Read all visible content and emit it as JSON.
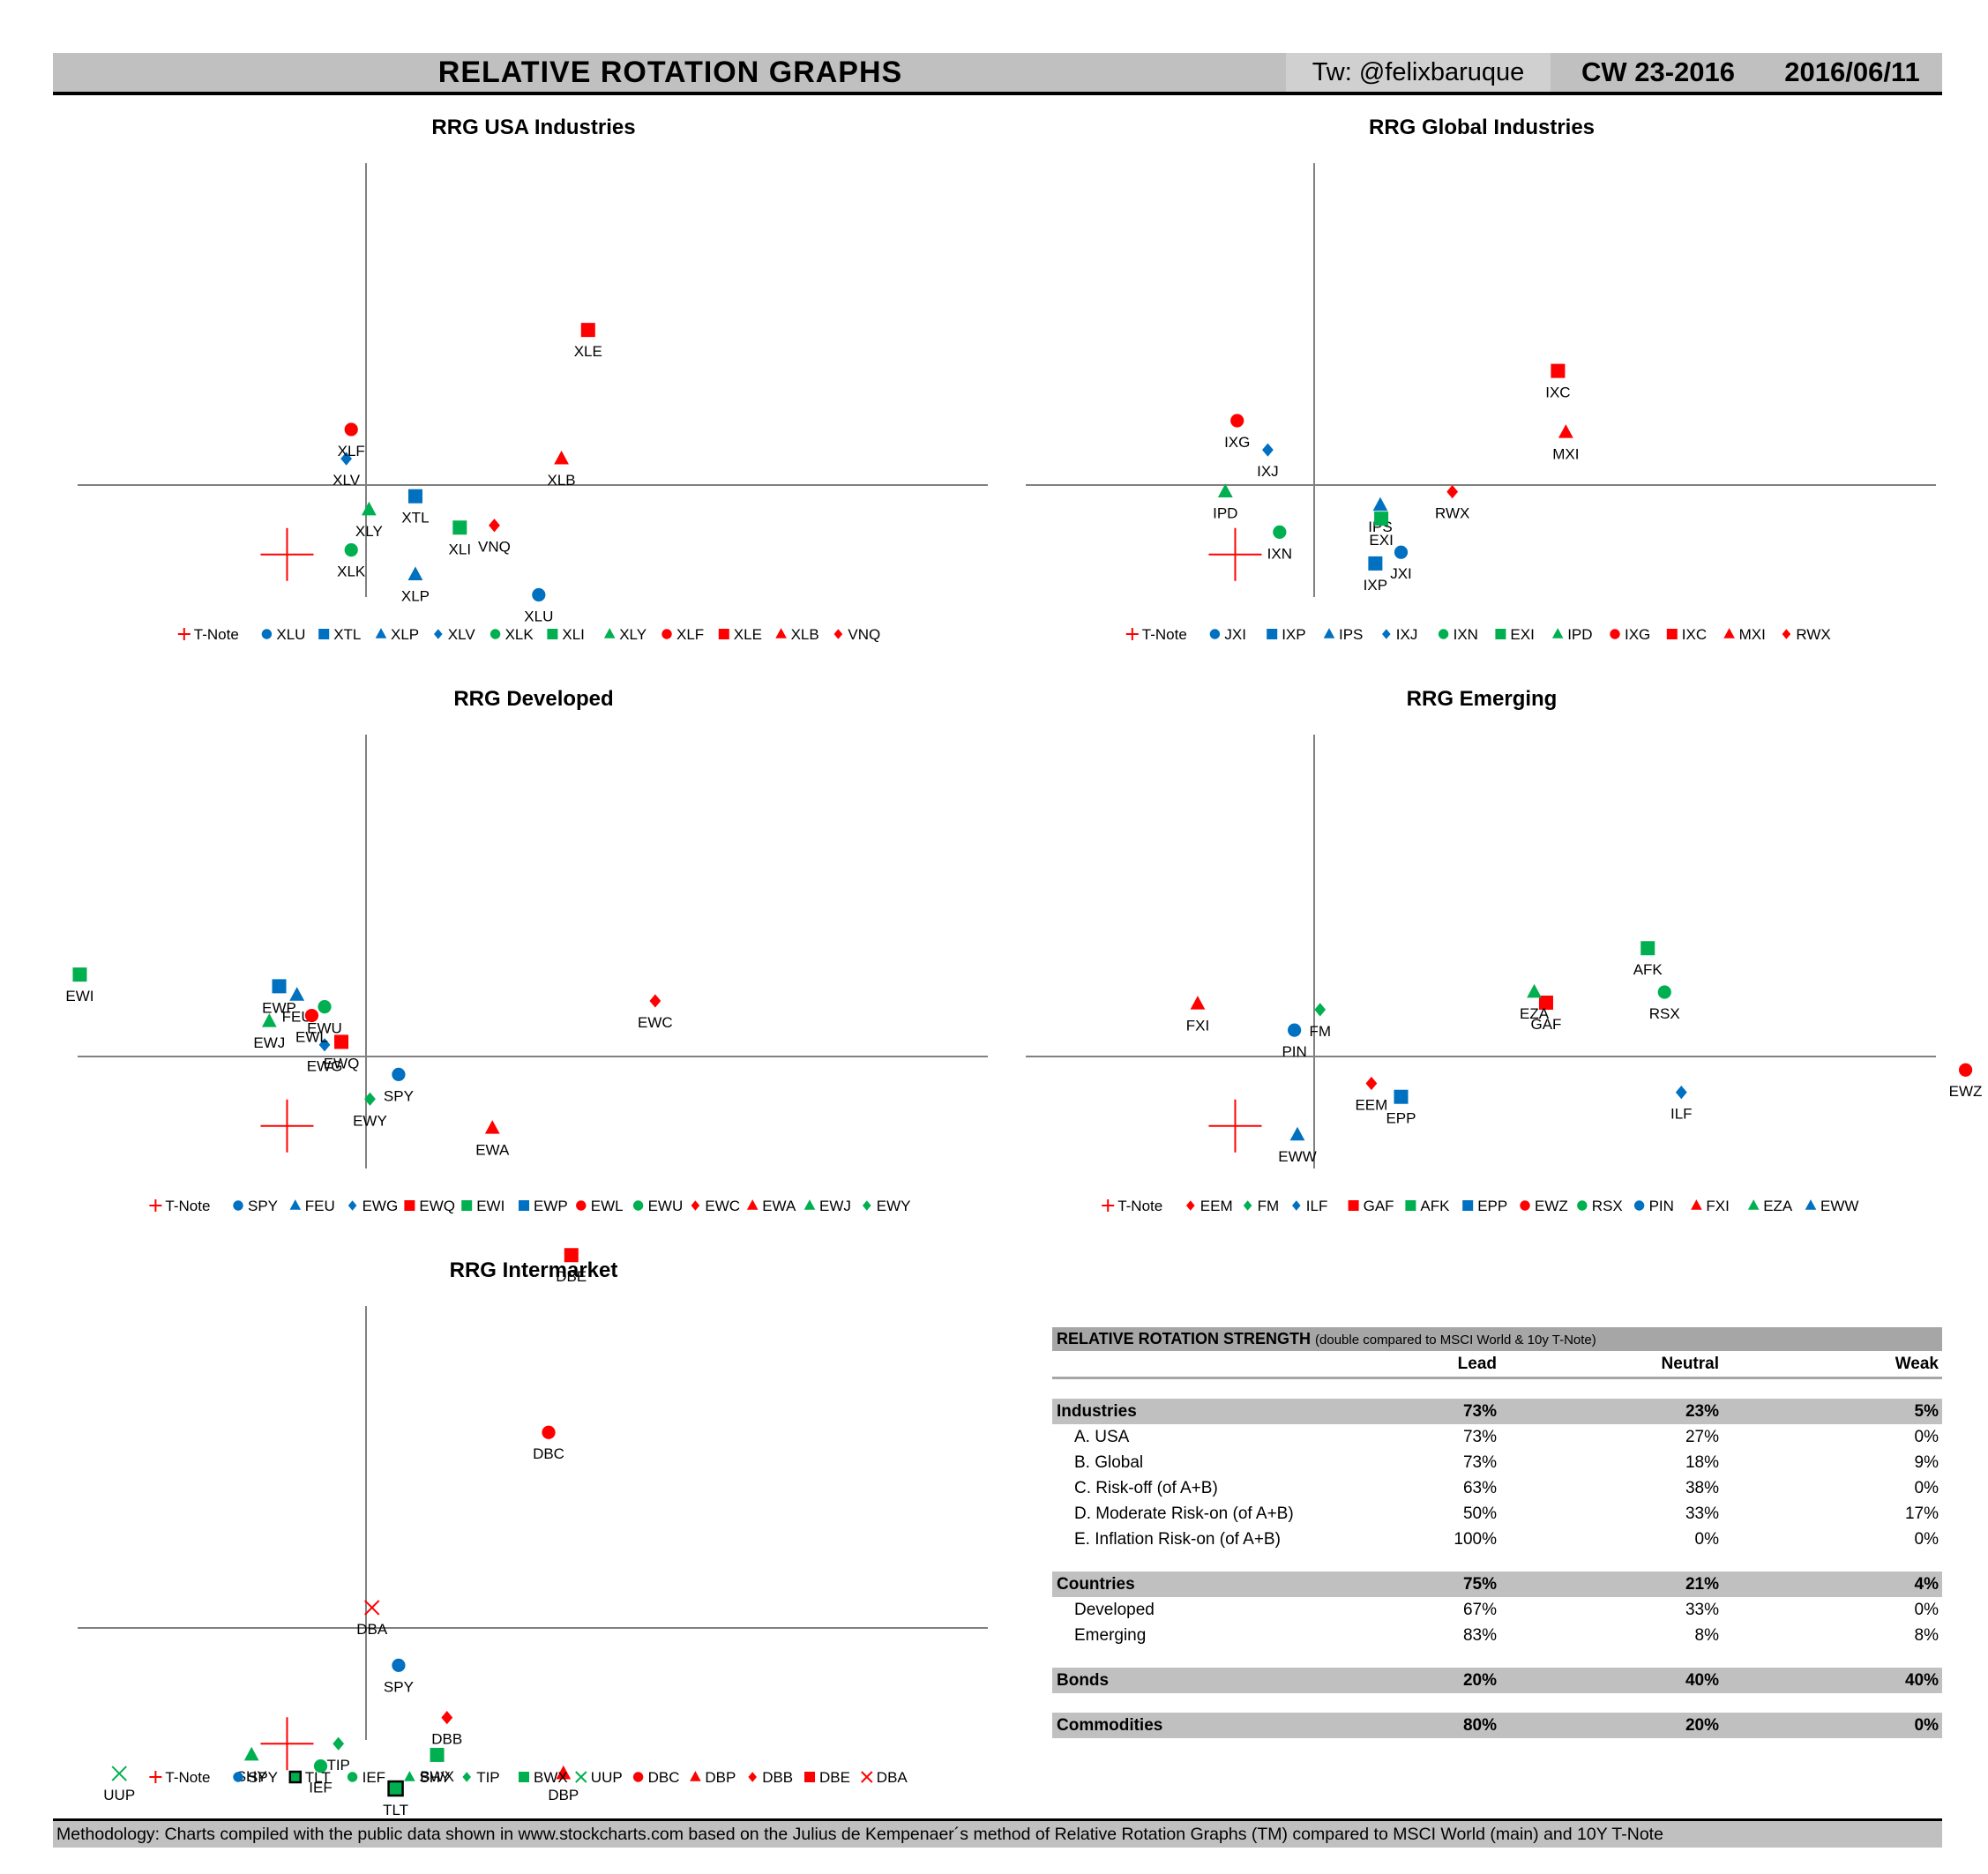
{
  "header": {
    "title": "RELATIVE ROTATION GRAPHS",
    "twitter": "Tw: @felixbaruque",
    "cw": "CW 23-2016",
    "date": "2016/06/11"
  },
  "chart_data": [
    {
      "type": "scatter",
      "title": "RRG USA Industries",
      "xlabel": "",
      "ylabel": "",
      "xlim": [
        -3.5,
        6.3
      ],
      "ylim": [
        -2.5,
        5.5
      ],
      "grid": false,
      "legend": "bottom",
      "series": [
        {
          "name": "T-Note",
          "marker": "plus",
          "color": "#ff0000",
          "label": "",
          "x": -0.8,
          "y": -1.55
        },
        {
          "name": "XLU",
          "marker": "circle",
          "color": "#0070c0",
          "label": "XLU",
          "x": 1.75,
          "y": -2.45
        },
        {
          "name": "XTL",
          "marker": "square",
          "color": "#0070c0",
          "label": "XTL",
          "x": 0.5,
          "y": -0.25
        },
        {
          "name": "XLP",
          "marker": "triangle",
          "color": "#0070c0",
          "label": "XLP",
          "x": 0.5,
          "y": -2.0
        },
        {
          "name": "XLV",
          "marker": "diamond",
          "color": "#0070c0",
          "label": "XLV",
          "x": -0.2,
          "y": 0.45
        },
        {
          "name": "XLK",
          "marker": "circle",
          "color": "#00b050",
          "label": "XLK",
          "x": -0.15,
          "y": -1.45
        },
        {
          "name": "XLI",
          "marker": "square",
          "color": "#00b050",
          "label": "XLI",
          "x": 0.95,
          "y": -0.95
        },
        {
          "name": "XLY",
          "marker": "triangle",
          "color": "#00b050",
          "label": "XLY",
          "x": 0.03,
          "y": -0.55
        },
        {
          "name": "XLF",
          "marker": "circle",
          "color": "#ff0000",
          "label": "XLF",
          "x": -0.15,
          "y": 0.95
        },
        {
          "name": "XLE",
          "marker": "square",
          "color": "#ff0000",
          "label": "XLE",
          "x": 2.25,
          "y": 2.65
        },
        {
          "name": "XLB",
          "marker": "triangle",
          "color": "#ff0000",
          "label": "XLB",
          "x": 1.98,
          "y": 0.45
        },
        {
          "name": "VNQ",
          "marker": "diamond",
          "color": "#ff0000",
          "label": "VNQ",
          "x": 1.3,
          "y": -0.9
        }
      ]
    },
    {
      "type": "scatter",
      "title": "RRG Global Industries",
      "xlabel": "",
      "ylabel": "",
      "xlim": [
        -3.5,
        6.3
      ],
      "ylim": [
        -2.5,
        5.5
      ],
      "grid": false,
      "legend": "bottom",
      "series": [
        {
          "name": "T-Note",
          "marker": "plus",
          "color": "#ff0000",
          "label": "",
          "x": -0.8,
          "y": -1.55
        },
        {
          "name": "JXI",
          "marker": "circle",
          "color": "#0070c0",
          "label": "JXI",
          "x": 0.88,
          "y": -1.5
        },
        {
          "name": "IXP",
          "marker": "square",
          "color": "#0070c0",
          "label": "IXP",
          "x": 0.62,
          "y": -1.75
        },
        {
          "name": "IPS",
          "marker": "triangle",
          "color": "#0070c0",
          "label": "IPS",
          "x": 0.67,
          "y": -0.45
        },
        {
          "name": "IXJ",
          "marker": "diamond",
          "color": "#0070c0",
          "label": "IXJ",
          "x": -0.47,
          "y": 0.6
        },
        {
          "name": "IXN",
          "marker": "circle",
          "color": "#00b050",
          "label": "IXN",
          "x": -0.35,
          "y": -1.05
        },
        {
          "name": "EXI",
          "marker": "square",
          "color": "#00b050",
          "label": "EXI",
          "x": 0.68,
          "y": -0.75
        },
        {
          "name": "IPD",
          "marker": "triangle",
          "color": "#00b050",
          "label": "IPD",
          "x": -0.9,
          "y": -0.15
        },
        {
          "name": "IXG",
          "marker": "circle",
          "color": "#ff0000",
          "label": "IXG",
          "x": -0.78,
          "y": 1.1
        },
        {
          "name": "IXC",
          "marker": "square",
          "color": "#ff0000",
          "label": "IXC",
          "x": 2.47,
          "y": 1.95
        },
        {
          "name": "MXI",
          "marker": "triangle",
          "color": "#ff0000",
          "label": "MXI",
          "x": 2.55,
          "y": 0.9
        },
        {
          "name": "RWX",
          "marker": "diamond",
          "color": "#ff0000",
          "label": "RWX",
          "x": 1.4,
          "y": -0.15
        }
      ]
    },
    {
      "type": "scatter",
      "title": "RRG Developed",
      "xlabel": "",
      "ylabel": "",
      "xlim": [
        -3.5,
        6.3
      ],
      "ylim": [
        -2.5,
        5.5
      ],
      "grid": false,
      "legend": "bottom",
      "series": [
        {
          "name": "T-Note",
          "marker": "plus",
          "color": "#ff0000",
          "label": "",
          "x": -0.8,
          "y": -1.55
        },
        {
          "name": "SPY",
          "marker": "circle",
          "color": "#0070c0",
          "label": "SPY",
          "x": 0.33,
          "y": -0.4
        },
        {
          "name": "FEU",
          "marker": "triangle",
          "color": "#0070c0",
          "label": "FEU",
          "x": -0.7,
          "y": 1.05
        },
        {
          "name": "EWG",
          "marker": "diamond",
          "color": "#0070c0",
          "label": "EWG",
          "x": -0.42,
          "y": 0.2
        },
        {
          "name": "EWQ",
          "marker": "square",
          "color": "#ff0000",
          "label": "EWQ",
          "x": -0.25,
          "y": 0.25
        },
        {
          "name": "EWI",
          "marker": "square",
          "color": "#00b050",
          "label": "EWI",
          "x": -2.9,
          "y": 1.4
        },
        {
          "name": "EWP",
          "marker": "square",
          "color": "#0070c0",
          "label": "EWP",
          "x": -0.88,
          "y": 1.2
        },
        {
          "name": "EWL",
          "marker": "circle",
          "color": "#ff0000",
          "label": "EWL",
          "x": -0.55,
          "y": 0.7
        },
        {
          "name": "EWU",
          "marker": "circle",
          "color": "#00b050",
          "label": "EWU",
          "x": -0.42,
          "y": 0.85
        },
        {
          "name": "EWC",
          "marker": "diamond",
          "color": "#ff0000",
          "label": "EWC",
          "x": 2.93,
          "y": 0.95
        },
        {
          "name": "EWA",
          "marker": "triangle",
          "color": "#ff0000",
          "label": "EWA",
          "x": 1.28,
          "y": -1.6
        },
        {
          "name": "EWJ",
          "marker": "triangle",
          "color": "#00b050",
          "label": "EWJ",
          "x": -0.98,
          "y": 0.6
        },
        {
          "name": "EWY",
          "marker": "diamond",
          "color": "#00b050",
          "label": "EWY",
          "x": 0.04,
          "y": -0.95
        }
      ]
    },
    {
      "type": "scatter",
      "title": "RRG Emerging",
      "xlabel": "",
      "ylabel": "",
      "xlim": [
        -3.5,
        6.3
      ],
      "ylim": [
        -2.5,
        5.5
      ],
      "grid": false,
      "legend": "bottom",
      "series": [
        {
          "name": "T-Note",
          "marker": "plus",
          "color": "#ff0000",
          "label": "",
          "x": -0.8,
          "y": -1.55
        },
        {
          "name": "EEM",
          "marker": "diamond",
          "color": "#ff0000",
          "label": "EEM",
          "x": 0.58,
          "y": -0.6
        },
        {
          "name": "FM",
          "marker": "diamond",
          "color": "#00b050",
          "label": "FM",
          "x": 0.06,
          "y": 0.8
        },
        {
          "name": "ILF",
          "marker": "diamond",
          "color": "#0070c0",
          "label": "ILF",
          "x": 3.72,
          "y": -0.8
        },
        {
          "name": "GAF",
          "marker": "square",
          "color": "#ff0000",
          "label": "GAF",
          "x": 2.35,
          "y": 0.92
        },
        {
          "name": "AFK",
          "marker": "square",
          "color": "#00b050",
          "label": "AFK",
          "x": 3.38,
          "y": 1.85
        },
        {
          "name": "EPP",
          "marker": "square",
          "color": "#0070c0",
          "label": "EPP",
          "x": 0.88,
          "y": -0.9
        },
        {
          "name": "EWZ",
          "marker": "circle",
          "color": "#ff0000",
          "label": "EWZ",
          "x": 6.6,
          "y": -0.3
        },
        {
          "name": "RSX",
          "marker": "circle",
          "color": "#00b050",
          "label": "RSX",
          "x": 3.55,
          "y": 1.1
        },
        {
          "name": "PIN",
          "marker": "circle",
          "color": "#0070c0",
          "label": "PIN",
          "x": -0.2,
          "y": 0.45
        },
        {
          "name": "FXI",
          "marker": "triangle",
          "color": "#ff0000",
          "label": "FXI",
          "x": -1.18,
          "y": 0.9
        },
        {
          "name": "EZA",
          "marker": "triangle",
          "color": "#00b050",
          "label": "EZA",
          "x": 2.23,
          "y": 1.1
        },
        {
          "name": "EWW",
          "marker": "triangle",
          "color": "#0070c0",
          "label": "EWW",
          "x": -0.17,
          "y": -1.75
        }
      ]
    },
    {
      "type": "scatter",
      "title": "RRG Intermarket",
      "xlabel": "",
      "ylabel": "",
      "xlim": [
        -3.5,
        6.3
      ],
      "ylim": [
        -1.5,
        7.9
      ],
      "grid": false,
      "legend": "bottom",
      "series": [
        {
          "name": "T-Note",
          "marker": "plus",
          "color": "#ff0000",
          "label": "",
          "x": -0.8,
          "y": -1.55
        },
        {
          "name": "SPY",
          "marker": "circle",
          "color": "#0070c0",
          "label": "SPY",
          "x": 0.33,
          "y": -0.5
        },
        {
          "name": "TLT",
          "marker": "square-outline",
          "color": "#00b050",
          "label": "TLT",
          "x": 0.3,
          "y": -2.15
        },
        {
          "name": "IEF",
          "marker": "circle",
          "color": "#00b050",
          "label": "IEF",
          "x": -0.46,
          "y": -1.85
        },
        {
          "name": "SHY",
          "marker": "triangle",
          "color": "#00b050",
          "label": "SHY",
          "x": -1.16,
          "y": -1.7
        },
        {
          "name": "TIP",
          "marker": "diamond",
          "color": "#00b050",
          "label": "TIP",
          "x": -0.28,
          "y": -1.55
        },
        {
          "name": "BWX",
          "marker": "square",
          "color": "#00b050",
          "label": "BWX",
          "x": 0.72,
          "y": -1.7
        },
        {
          "name": "UUP",
          "marker": "x-mark",
          "color": "#00b050",
          "label": "UUP",
          "x": -2.5,
          "y": -1.95
        },
        {
          "name": "DBC",
          "marker": "circle",
          "color": "#ff0000",
          "label": "DBC",
          "x": 1.85,
          "y": 4.8
        },
        {
          "name": "DBP",
          "marker": "triangle",
          "color": "#ff0000",
          "label": "DBP",
          "x": 2.0,
          "y": -1.95
        },
        {
          "name": "DBB",
          "marker": "diamond",
          "color": "#ff0000",
          "label": "DBB",
          "x": 0.82,
          "y": -1.2
        },
        {
          "name": "DBE",
          "marker": "square",
          "color": "#ff0000",
          "label": "DBE",
          "x": 2.08,
          "y": 9.15
        },
        {
          "name": "DBA",
          "marker": "x-mark",
          "color": "#ff0000",
          "label": "DBA",
          "x": 0.06,
          "y": 0.5
        }
      ]
    }
  ],
  "strength_table": {
    "title": "RELATIVE ROTATION STRENGTH",
    "note": "(double compared to MSCI World & 10y T-Note)",
    "columns": [
      "",
      "Lead",
      "Neutral",
      "Weak"
    ],
    "groups": [
      {
        "name": "Industries",
        "lead": "73%",
        "neutral": "23%",
        "weak": "5%",
        "rows": [
          {
            "name": "A. USA",
            "lead": "73%",
            "neutral": "27%",
            "weak": "0%"
          },
          {
            "name": "B. Global",
            "lead": "73%",
            "neutral": "18%",
            "weak": "9%"
          },
          {
            "name": "C. Risk-off (of A+B)",
            "lead": "63%",
            "neutral": "38%",
            "weak": "0%"
          },
          {
            "name": "D. Moderate Risk-on (of A+B)",
            "lead": "50%",
            "neutral": "33%",
            "weak": "17%"
          },
          {
            "name": "E. Inflation Risk-on (of A+B)",
            "lead": "100%",
            "neutral": "0%",
            "weak": "0%"
          }
        ]
      },
      {
        "name": "Countries",
        "lead": "75%",
        "neutral": "21%",
        "weak": "4%",
        "rows": [
          {
            "name": "Developed",
            "lead": "67%",
            "neutral": "33%",
            "weak": "0%"
          },
          {
            "name": "Emerging",
            "lead": "83%",
            "neutral": "8%",
            "weak": "8%"
          }
        ]
      },
      {
        "name": "Bonds",
        "lead": "20%",
        "neutral": "40%",
        "weak": "40%",
        "rows": []
      },
      {
        "name": "Commodities",
        "lead": "80%",
        "neutral": "20%",
        "weak": "0%",
        "rows": []
      }
    ]
  },
  "footer": {
    "text": "Methodology: Charts compiled with the public data shown in www.stockcharts.com based on the Julius de Kempenaer´s method of Relative Rotation Graphs (TM) compared to MSCI World (main) and 10Y T-Note"
  }
}
